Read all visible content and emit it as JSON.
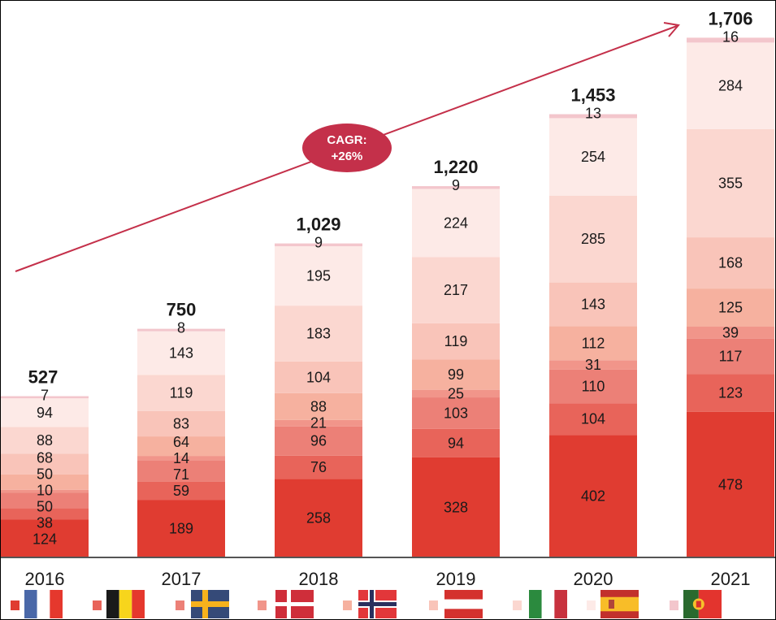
{
  "chart_data": {
    "type": "bar",
    "stacked": true,
    "title": "",
    "xlabel": "",
    "ylabel": "",
    "categories": [
      "2016",
      "2017",
      "2018",
      "2019",
      "2020",
      "2021"
    ],
    "totals": [
      "527",
      "750",
      "1,029",
      "1,220",
      "1,453",
      "1,706"
    ],
    "total_values": [
      527,
      750,
      1029,
      1220,
      1453,
      1706
    ],
    "ylim": [
      0,
      1706
    ],
    "grid": false,
    "legend_placement": "bottom",
    "series": [
      {
        "name": "France",
        "icon": "flag-france",
        "color": "#e03c31",
        "values": [
          124,
          189,
          258,
          328,
          402,
          478
        ]
      },
      {
        "name": "Belgium",
        "icon": "flag-belgium",
        "color": "#e8645a",
        "values": [
          38,
          59,
          76,
          94,
          104,
          123
        ]
      },
      {
        "name": "Sweden",
        "icon": "flag-sweden",
        "color": "#ec8077",
        "values": [
          50,
          71,
          96,
          103,
          110,
          117
        ]
      },
      {
        "name": "Denmark",
        "icon": "flag-denmark",
        "color": "#f1958a",
        "values": [
          10,
          14,
          21,
          25,
          31,
          39
        ]
      },
      {
        "name": "Norway",
        "icon": "flag-norway",
        "color": "#f6b19f",
        "values": [
          50,
          64,
          88,
          99,
          112,
          125
        ]
      },
      {
        "name": "Austria",
        "icon": "flag-austria",
        "color": "#f9c4b9",
        "values": [
          68,
          83,
          104,
          119,
          143,
          168
        ]
      },
      {
        "name": "Italy",
        "icon": "flag-italy",
        "color": "#fbd7d0",
        "values": [
          88,
          119,
          183,
          217,
          285,
          355
        ]
      },
      {
        "name": "Spain",
        "icon": "flag-spain",
        "color": "#fdeae7",
        "values": [
          94,
          143,
          195,
          224,
          254,
          284
        ]
      },
      {
        "name": "Portugal",
        "icon": "flag-portugal",
        "color": "#f3c6cc",
        "values": [
          7,
          8,
          9,
          9,
          13,
          16
        ]
      }
    ],
    "annotation": {
      "line1": "CAGR:",
      "line2": "+26%",
      "color": "#c4304a"
    }
  }
}
